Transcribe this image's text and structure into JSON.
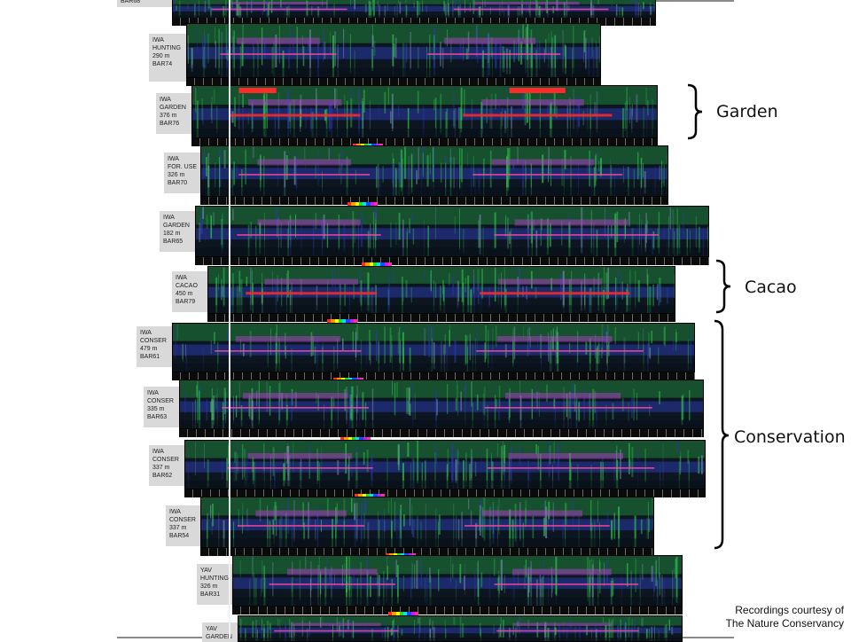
{
  "recordings": [
    {
      "id": "r0",
      "label_lines": [
        "BAR68"
      ]
    },
    {
      "id": "r1",
      "label_lines": [
        "IWA",
        "HUNTING",
        "290 m",
        "BAR74"
      ]
    },
    {
      "id": "r2",
      "label_lines": [
        "IWA",
        "GARDEN",
        "376 m",
        "BAR76"
      ]
    },
    {
      "id": "r3",
      "label_lines": [
        "IWA",
        "FOR. USE",
        "326 m",
        "BAR70"
      ]
    },
    {
      "id": "r4",
      "label_lines": [
        "IWA",
        "GARDEN",
        "182 m",
        "BAR65"
      ]
    },
    {
      "id": "r5",
      "label_lines": [
        "IWA",
        "CACAO",
        "450 m",
        "BAR79"
      ]
    },
    {
      "id": "r6",
      "label_lines": [
        "IWA",
        "CONSER",
        "479 m",
        "BAR61"
      ]
    },
    {
      "id": "r7",
      "label_lines": [
        "IWA",
        "CONSER",
        "335 m",
        "BAR63"
      ]
    },
    {
      "id": "r8",
      "label_lines": [
        "IWA",
        "CONSER",
        "337 m",
        "BAR62"
      ]
    },
    {
      "id": "r9",
      "label_lines": [
        "IWA",
        "CONSER",
        "337 m",
        "BAR54"
      ]
    },
    {
      "id": "r10",
      "label_lines": [
        "YAV",
        "HUNTING",
        "326 m",
        "BAR31"
      ]
    },
    {
      "id": "r11",
      "label_lines": [
        "YAV",
        "GARDEN"
      ]
    }
  ],
  "groups": {
    "garden": "Garden",
    "cacao": "Cacao",
    "conservation": "Conservation"
  },
  "credit": {
    "line1": "Recordings courtesy of",
    "line2": "The Nature Conservancy"
  },
  "palette_colors": [
    "#ff2a2a",
    "#ff9a00",
    "#ffff00",
    "#22dd22",
    "#00e5ff",
    "#2244ff",
    "#c21cff",
    "#ff2aa8"
  ],
  "spectrogram_colors": {
    "background": "#0c1520",
    "green": "#2fbf4a",
    "blue": "#2a3aa8",
    "magenta": "#c03ad6",
    "red": "#ff2a2a",
    "pink": "#ff4aa0"
  }
}
